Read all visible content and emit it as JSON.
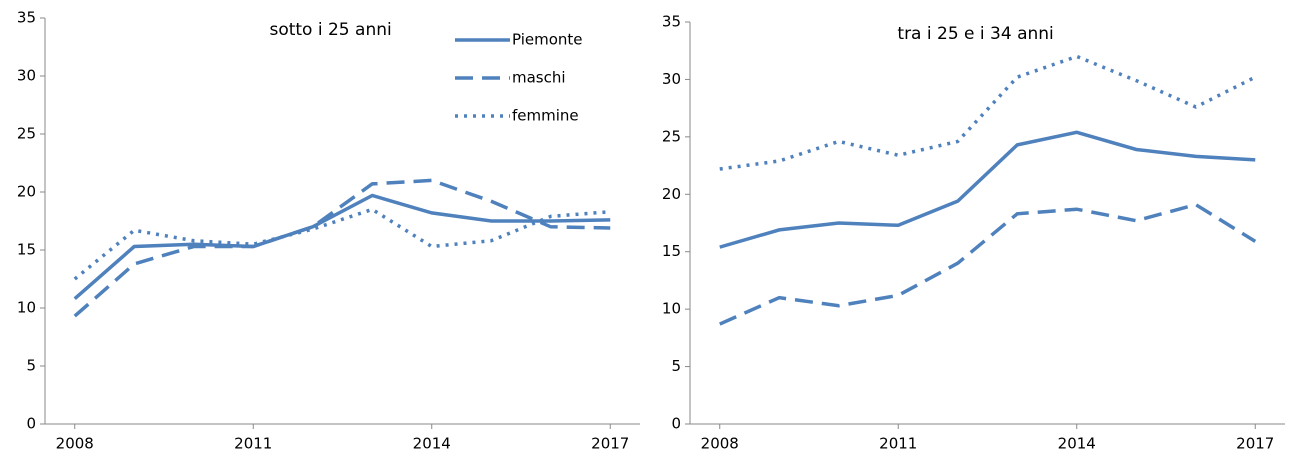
{
  "chart_data": [
    {
      "type": "line",
      "title": "sotto i 25 anni",
      "x": [
        2008,
        2009,
        2010,
        2011,
        2012,
        2013,
        2014,
        2015,
        2016,
        2017
      ],
      "xlim": [
        2007.5,
        2017.5
      ],
      "xticks": [
        2008,
        2011,
        2014,
        2017
      ],
      "ylim": [
        0,
        35
      ],
      "yticks": [
        0,
        5,
        10,
        15,
        20,
        25,
        30,
        35
      ],
      "grid": false,
      "legend": "upper right",
      "series": [
        {
          "name": "Piemonte",
          "color": "#4f81bd",
          "dash": "solid",
          "values": [
            10.8,
            15.3,
            15.5,
            15.3,
            17.0,
            19.7,
            18.2,
            17.5,
            17.5,
            17.6
          ]
        },
        {
          "name": "maschi",
          "color": "#4f81bd",
          "dash": "dashed",
          "values": [
            9.3,
            13.8,
            15.3,
            15.3,
            17.0,
            20.7,
            21.0,
            19.2,
            17.0,
            16.9
          ]
        },
        {
          "name": "femmine",
          "color": "#4f81bd",
          "dash": "dotted",
          "values": [
            12.5,
            16.7,
            15.8,
            15.5,
            16.8,
            18.5,
            15.3,
            15.8,
            17.9,
            18.3
          ]
        }
      ]
    },
    {
      "type": "line",
      "title": "tra i 25 e i 34 anni",
      "x": [
        2008,
        2009,
        2010,
        2011,
        2012,
        2013,
        2014,
        2015,
        2016,
        2017
      ],
      "xlim": [
        2007.5,
        2017.5
      ],
      "xticks": [
        2008,
        2011,
        2014,
        2017
      ],
      "ylim": [
        0,
        35
      ],
      "yticks": [
        0,
        5,
        10,
        15,
        20,
        25,
        30,
        35
      ],
      "grid": false,
      "series": [
        {
          "color": "#4f81bd",
          "dash": "solid",
          "values": [
            15.4,
            16.9,
            17.5,
            17.3,
            19.4,
            24.3,
            25.4,
            23.9,
            23.3,
            23.0
          ]
        },
        {
          "color": "#4f81bd",
          "dash": "dashed",
          "values": [
            8.7,
            11.0,
            10.3,
            11.2,
            14.0,
            18.3,
            18.7,
            17.7,
            19.1,
            15.9
          ]
        },
        {
          "color": "#4f81bd",
          "dash": "dotted",
          "values": [
            22.2,
            22.9,
            24.6,
            23.4,
            24.6,
            30.2,
            32.0,
            29.9,
            27.6,
            30.2
          ]
        }
      ]
    }
  ]
}
